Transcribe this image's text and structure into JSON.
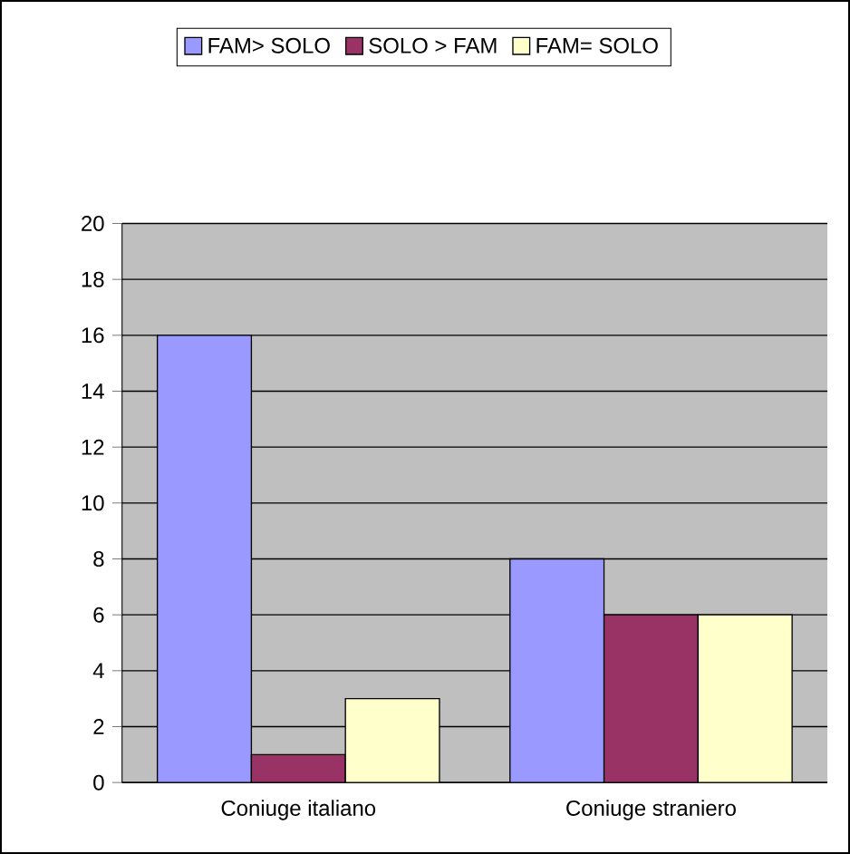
{
  "chart_data": {
    "type": "bar",
    "categories": [
      "Coniuge italiano",
      "Coniuge straniero"
    ],
    "series": [
      {
        "name": "FAM> SOLO",
        "color": "#9999ff",
        "values": [
          16,
          8
        ]
      },
      {
        "name": "SOLO > FAM",
        "color": "#993366",
        "values": [
          1,
          6
        ]
      },
      {
        "name": "FAM= SOLO",
        "color": "#ffffcc",
        "values": [
          3,
          6
        ]
      }
    ],
    "ylim": [
      0,
      20
    ],
    "yticks": [
      0,
      2,
      4,
      6,
      8,
      10,
      12,
      14,
      16,
      18,
      20
    ],
    "grid": "y",
    "legend": "top"
  }
}
